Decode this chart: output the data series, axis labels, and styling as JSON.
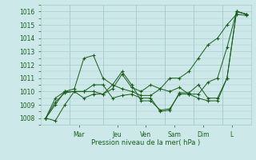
{
  "background_color": "#cce8e8",
  "grid_color": "#aacccc",
  "line_color": "#1a5c1a",
  "ylabel": "Pression niveau de la mer( hPa )",
  "ylim": [
    1007.5,
    1016.5
  ],
  "yticks": [
    1008,
    1009,
    1010,
    1011,
    1012,
    1013,
    1014,
    1015,
    1016
  ],
  "day_labels": [
    "Mar",
    "Jeu",
    "Ven",
    "Sam",
    "Dim",
    "L"
  ],
  "day_tick_positions": [
    3.5,
    7.5,
    10.5,
    13.5,
    16.5,
    19.5
  ],
  "day_vline_positions": [
    2.5,
    6.0,
    9.5,
    12.5,
    15.5,
    18.5
  ],
  "xlim": [
    -0.5,
    21.5
  ],
  "series": [
    [
      1008.0,
      1007.8,
      1009.0,
      1010.0,
      1010.0,
      1010.0,
      1009.8,
      1010.2,
      1011.3,
      1010.3,
      1010.0,
      1010.5,
      1010.2,
      1011.0,
      1011.0,
      1011.5,
      1012.5,
      1013.5,
      1014.0,
      1015.0,
      1015.8,
      1015.7
    ],
    [
      1008.0,
      1009.0,
      1010.0,
      1010.2,
      1012.5,
      1012.7,
      1011.0,
      1010.5,
      1010.2,
      1010.0,
      1009.7,
      1009.7,
      1010.2,
      1010.0,
      1010.3,
      1009.8,
      1009.8,
      1010.7,
      1011.0,
      1013.3,
      1016.0,
      1015.8
    ],
    [
      1008.0,
      1009.5,
      1010.0,
      1010.0,
      1009.5,
      1009.8,
      1009.8,
      1010.5,
      1011.5,
      1010.5,
      1009.3,
      1009.3,
      1008.6,
      1008.7,
      1009.8,
      1009.8,
      1009.5,
      1009.3,
      1009.3,
      1011.0,
      1016.0,
      1015.8
    ],
    [
      1008.0,
      1009.2,
      1009.9,
      1010.0,
      1010.0,
      1010.5,
      1010.5,
      1009.5,
      1009.7,
      1009.8,
      1009.5,
      1009.5,
      1008.5,
      1008.6,
      1009.9,
      1009.9,
      1010.5,
      1009.5,
      1009.5,
      1011.0,
      1016.0,
      1015.8
    ]
  ]
}
